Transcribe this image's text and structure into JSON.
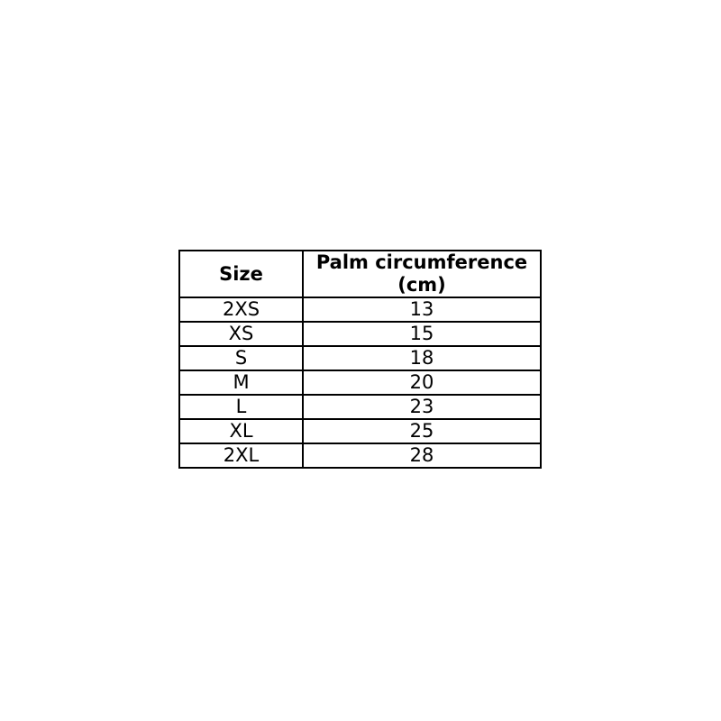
{
  "page": {
    "background_color": "#ffffff",
    "border_color": "#000000",
    "text_color": "#000000"
  },
  "table": {
    "header": {
      "size_label": "Size",
      "palm_line1": "Palm circumference",
      "palm_line2": "(cm)"
    }
  },
  "chart_data": {
    "type": "table",
    "title": "",
    "columns": [
      "Size",
      "Palm circumference (cm)"
    ],
    "rows": [
      {
        "size": "2XS",
        "palm_circumference_cm": "13"
      },
      {
        "size": "XS",
        "palm_circumference_cm": "15"
      },
      {
        "size": "S",
        "palm_circumference_cm": "18"
      },
      {
        "size": "M",
        "palm_circumference_cm": "20"
      },
      {
        "size": "L",
        "palm_circumference_cm": "23"
      },
      {
        "size": "XL",
        "palm_circumference_cm": "25"
      },
      {
        "size": "2XL",
        "palm_circumference_cm": "28"
      }
    ]
  }
}
